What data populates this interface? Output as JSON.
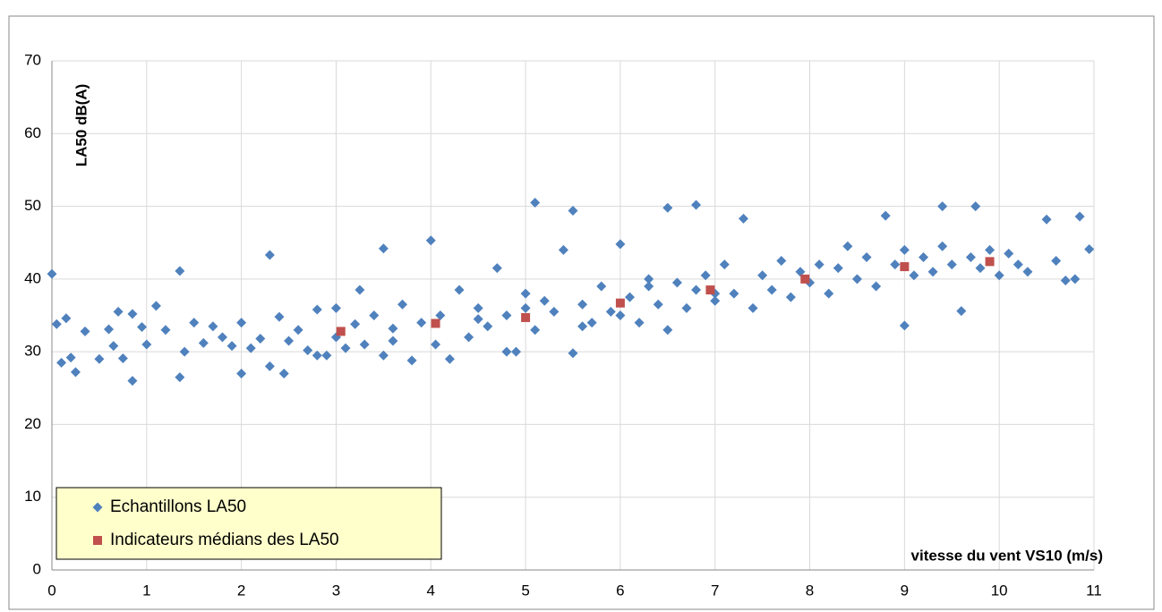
{
  "chart_data": {
    "type": "scatter",
    "xlabel": "vitesse du vent  VS10 (m/s)",
    "ylabel": "LA50 dB(A)",
    "xlim": [
      0,
      11
    ],
    "xticks": [
      0,
      1,
      2,
      3,
      4,
      5,
      6,
      7,
      8,
      9,
      10,
      11
    ],
    "ylim": [
      0,
      70
    ],
    "yticks": [
      0,
      10,
      20,
      30,
      40,
      50,
      60,
      70
    ],
    "grid": true,
    "legend": "lower left",
    "series": [
      {
        "name": "Echantillons LA50",
        "color": "#4f81bd",
        "marker": "diamond",
        "x": [
          0,
          0.05,
          0.1,
          0.15,
          0.2,
          0.25,
          0.35,
          0.5,
          0.6,
          0.65,
          0.7,
          0.75,
          0.85,
          0.85,
          0.95,
          1.0,
          1.1,
          1.2,
          1.35,
          1.35,
          1.4,
          1.5,
          1.6,
          1.7,
          1.8,
          1.9,
          2.0,
          2.0,
          2.1,
          2.2,
          2.3,
          2.3,
          2.4,
          2.45,
          2.5,
          2.6,
          2.7,
          2.8,
          2.9,
          3.0,
          3.1,
          3.2,
          3.25,
          3.3,
          3.4,
          3.5,
          3.5,
          3.6,
          3.7,
          3.8,
          3.9,
          4.0,
          4.05,
          4.1,
          4.2,
          4.3,
          4.4,
          4.5,
          4.6,
          4.7,
          4.8,
          4.9,
          5.0,
          5.1,
          5.1,
          5.2,
          5.3,
          5.4,
          5.5,
          5.5,
          5.6,
          5.7,
          5.8,
          5.9,
          6.0,
          6.1,
          6.2,
          6.3,
          6.4,
          6.5,
          6.5,
          6.6,
          6.7,
          6.8,
          6.8,
          6.9,
          7.0,
          7.1,
          7.2,
          7.3,
          7.4,
          7.5,
          7.6,
          7.7,
          7.8,
          7.9,
          8.0,
          8.1,
          8.2,
          8.3,
          8.4,
          8.5,
          8.6,
          8.7,
          8.8,
          8.9,
          9.0,
          9.0,
          9.1,
          9.2,
          9.3,
          9.4,
          9.4,
          9.5,
          9.6,
          9.7,
          9.75,
          9.8,
          9.9,
          10.0,
          10.1,
          10.2,
          10.3,
          10.5,
          10.6,
          10.7,
          10.8,
          10.85,
          10.95,
          3.0,
          4.5,
          5.0,
          6.0,
          7.0,
          4.8,
          5.6,
          6.3,
          3.6,
          2.8
        ],
        "values": [
          40.7,
          33.8,
          28.5,
          34.6,
          29.2,
          27.2,
          32.8,
          29.0,
          33.1,
          30.8,
          35.5,
          29.1,
          26.0,
          35.2,
          33.4,
          31.0,
          36.3,
          33.0,
          41.1,
          26.5,
          30.0,
          34.0,
          31.2,
          33.5,
          32.0,
          30.8,
          27.0,
          34.0,
          30.5,
          31.8,
          43.3,
          28.0,
          34.8,
          27.0,
          31.5,
          33.0,
          30.2,
          35.8,
          29.5,
          36.0,
          30.5,
          33.8,
          38.5,
          31.0,
          35.0,
          44.2,
          29.5,
          33.2,
          36.5,
          28.8,
          34.0,
          45.3,
          31.0,
          35.0,
          29.0,
          38.5,
          32.0,
          36.0,
          33.5,
          41.5,
          35.0,
          30.0,
          38.0,
          50.5,
          33.0,
          37.0,
          35.5,
          44.0,
          49.4,
          29.8,
          36.5,
          34.0,
          39.0,
          35.5,
          44.8,
          37.5,
          34.0,
          40.0,
          36.5,
          49.8,
          33.0,
          39.5,
          36.0,
          50.2,
          38.5,
          40.5,
          37.0,
          42.0,
          38.0,
          48.3,
          36.0,
          40.5,
          38.5,
          42.5,
          37.5,
          41.0,
          39.5,
          42.0,
          38.0,
          41.5,
          44.5,
          40.0,
          43.0,
          39.0,
          48.7,
          42.0,
          44.0,
          33.6,
          40.5,
          43.0,
          41.0,
          50.0,
          44.5,
          42.0,
          35.6,
          43.0,
          50.0,
          41.5,
          44.0,
          40.5,
          43.5,
          42.0,
          41.0,
          48.2,
          42.5,
          39.8,
          40.0,
          48.6,
          44.1,
          32.0,
          34.5,
          36.0,
          35.0,
          38.0,
          30.0,
          33.5,
          39.0,
          31.5,
          29.5
        ]
      },
      {
        "name": "Indicateurs médians des LA50",
        "color": "#c0504d",
        "marker": "square",
        "x": [
          3.05,
          4.05,
          5.0,
          6.0,
          6.95,
          7.95,
          9.0,
          9.9
        ],
        "values": [
          32.8,
          33.9,
          34.7,
          36.7,
          38.5,
          40.0,
          41.7,
          42.4
        ]
      }
    ]
  }
}
